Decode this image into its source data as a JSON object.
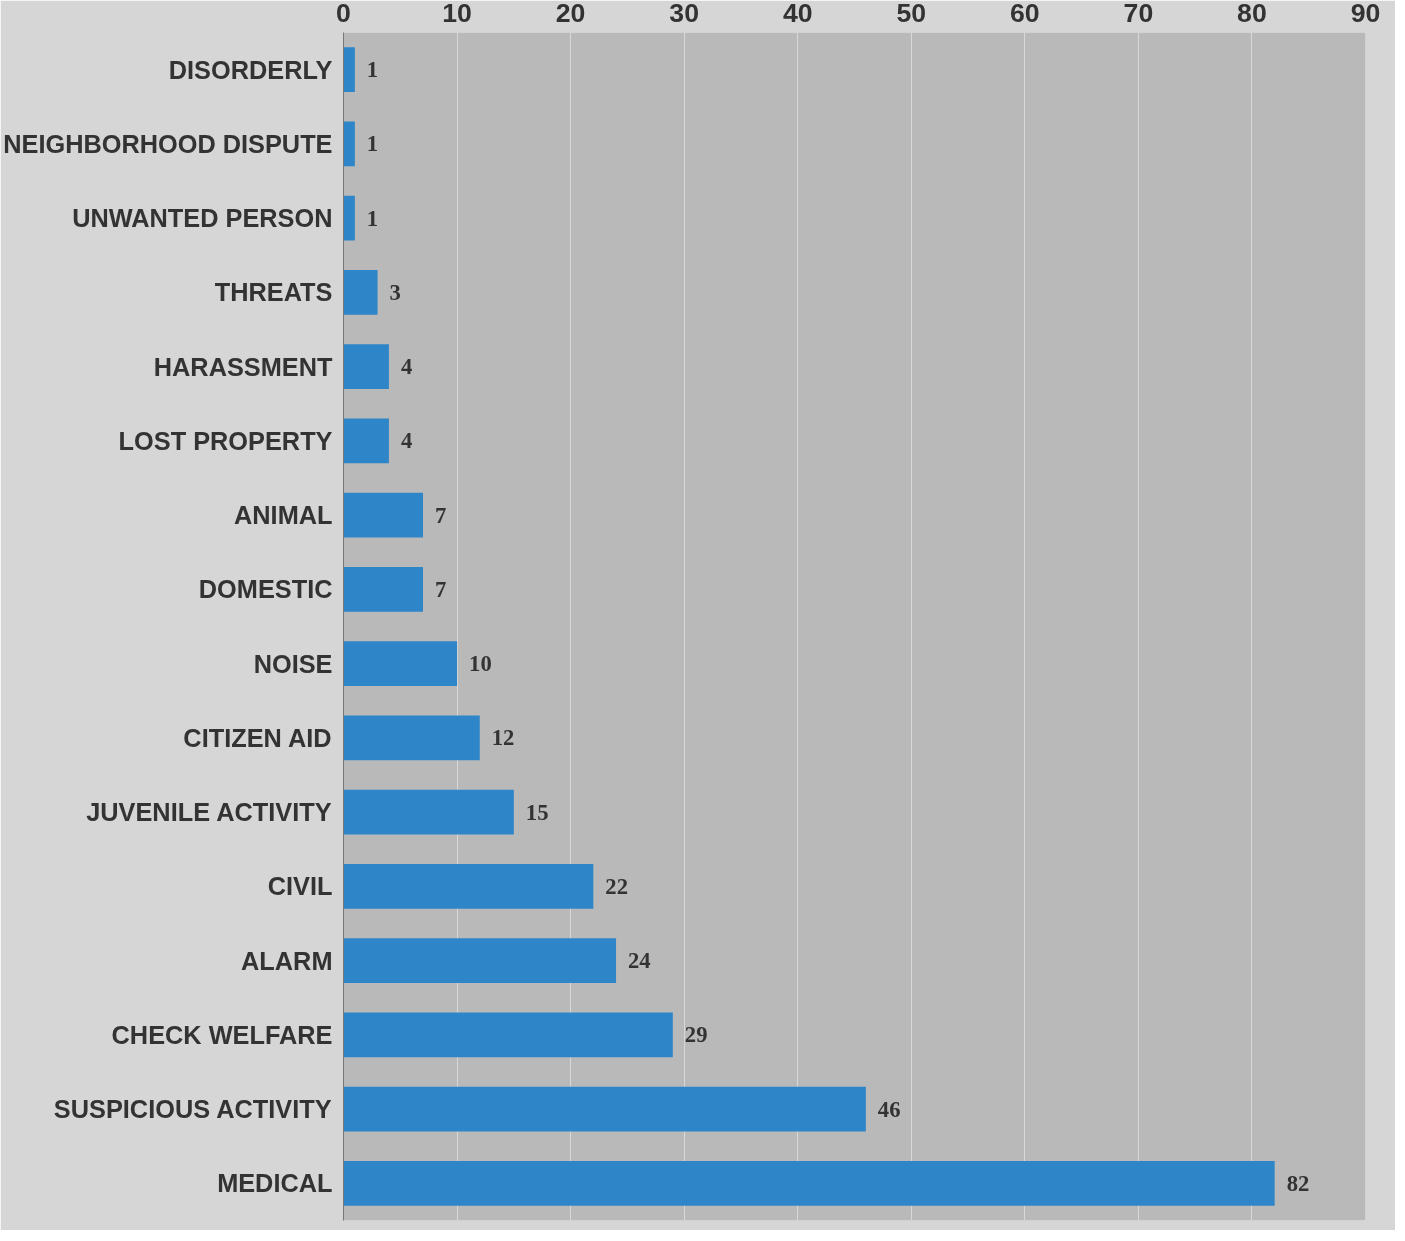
{
  "chart_data": {
    "type": "bar",
    "orientation": "horizontal",
    "categories": [
      "DISORDERLY",
      "NEIGHBORHOOD DISPUTE",
      "UNWANTED PERSON",
      "THREATS",
      "HARASSMENT",
      "LOST PROPERTY",
      "ANIMAL",
      "DOMESTIC",
      "NOISE",
      "CITIZEN AID",
      "JUVENILE ACTIVITY",
      "CIVIL",
      "ALARM",
      "CHECK WELFARE",
      "SUSPICIOUS ACTIVITY",
      "MEDICAL"
    ],
    "values": [
      1,
      1,
      1,
      3,
      4,
      4,
      7,
      7,
      10,
      12,
      15,
      22,
      24,
      29,
      46,
      82
    ],
    "color": "#2e86c8",
    "xlim": [
      0,
      90
    ],
    "xticks": [
      0,
      10,
      20,
      30,
      40,
      50,
      60,
      70,
      80,
      90
    ],
    "grid": "x",
    "data_labels": true
  }
}
